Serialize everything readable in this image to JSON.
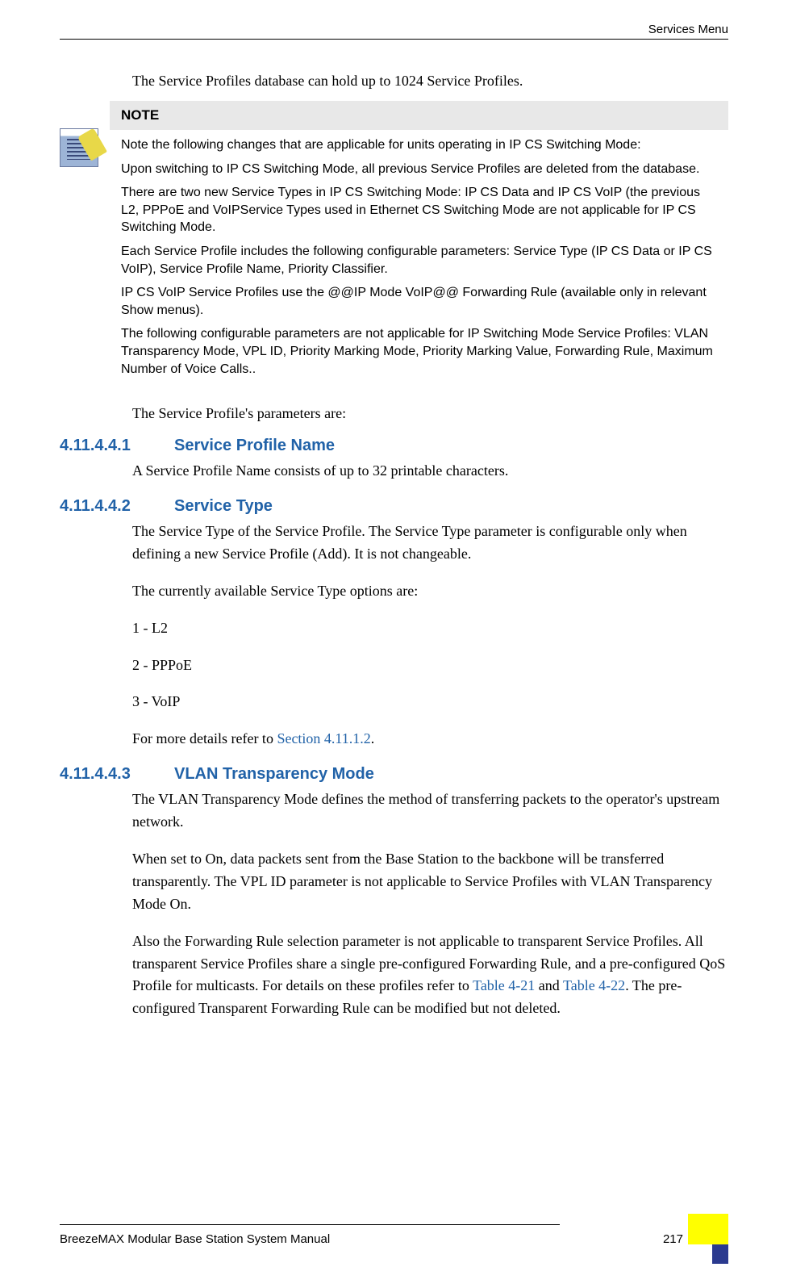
{
  "header": {
    "right": "Services Menu"
  },
  "intro": "The Service Profiles database can hold up to 1024 Service Profiles.",
  "note": {
    "label": "NOTE",
    "paragraphs": [
      "Note the following changes that are applicable for units operating in IP CS Switching Mode:",
      "Upon switching to IP CS Switching Mode, all previous Service Profiles are deleted from the database.",
      "There are two new Service Types in IP CS Switching Mode: IP CS Data and IP CS VoIP (the previous L2, PPPoE and VoIPService Types used in Ethernet CS Switching Mode  are not applicable for IP CS Switching Mode.",
      "Each Service Profile includes the following configurable parameters: Service Type (IP CS Data or IP CS VoIP), Service Profile Name, Priority Classifier.",
      "IP CS VoIP Service Profiles use the @@IP Mode VoIP@@ Forwarding Rule (available only in relevant Show menus).",
      "The following configurable parameters are not applicable for IP Switching Mode Service Profiles: VLAN Transparency Mode, VPL ID, Priority Marking Mode, Priority Marking Value, Forwarding Rule, Maximum Number of Voice Calls.."
    ]
  },
  "params_intro": "The Service Profile's parameters are:",
  "sections": [
    {
      "num": "4.11.4.4.1",
      "title": "Service Profile Name",
      "body": [
        {
          "text": "A Service Profile Name consists of up to 32 printable characters."
        }
      ]
    },
    {
      "num": "4.11.4.4.2",
      "title": "Service Type",
      "body": [
        {
          "text": "The Service Type of the Service Profile. The Service Type parameter is configurable only when defining a new Service Profile (Add). It is not changeable."
        },
        {
          "text": "The currently available Service Type options are:"
        },
        {
          "text": "1 - L2"
        },
        {
          "text": "2 - PPPoE"
        },
        {
          "text": "3 - VoIP"
        },
        {
          "pre": "For more details refer to ",
          "xref": "Section 4.11.1.2",
          "post": "."
        }
      ]
    },
    {
      "num": "4.11.4.4.3",
      "title": "VLAN Transparency Mode",
      "body": [
        {
          "text": "The VLAN Transparency Mode defines the method of transferring packets to the operator's upstream network."
        },
        {
          "text": "When set to On, data packets sent from the Base Station to the backbone will be transferred transparently. The VPL ID parameter is not applicable to Service Profiles with VLAN Transparency Mode On."
        },
        {
          "pre": "Also the Forwarding Rule selection parameter is not applicable to transparent Service Profiles. All transparent Service Profiles share a single pre-configured Forwarding Rule, and a pre-configured QoS Profile for multicasts. For details on these profiles refer to ",
          "xref": "Table 4-21",
          "mid": " and ",
          "xref2": "Table 4-22",
          "post": ". The pre-configured Transparent Forwarding Rule can be modified but not deleted."
        }
      ]
    }
  ],
  "footer": {
    "left": "BreezeMAX Modular Base Station System Manual",
    "page": "217"
  },
  "colors": {
    "heading": "#2162a8",
    "note_bg": "#e8e8e8",
    "accent_yellow": "#ffff00",
    "accent_blue": "#2b3a8f"
  }
}
